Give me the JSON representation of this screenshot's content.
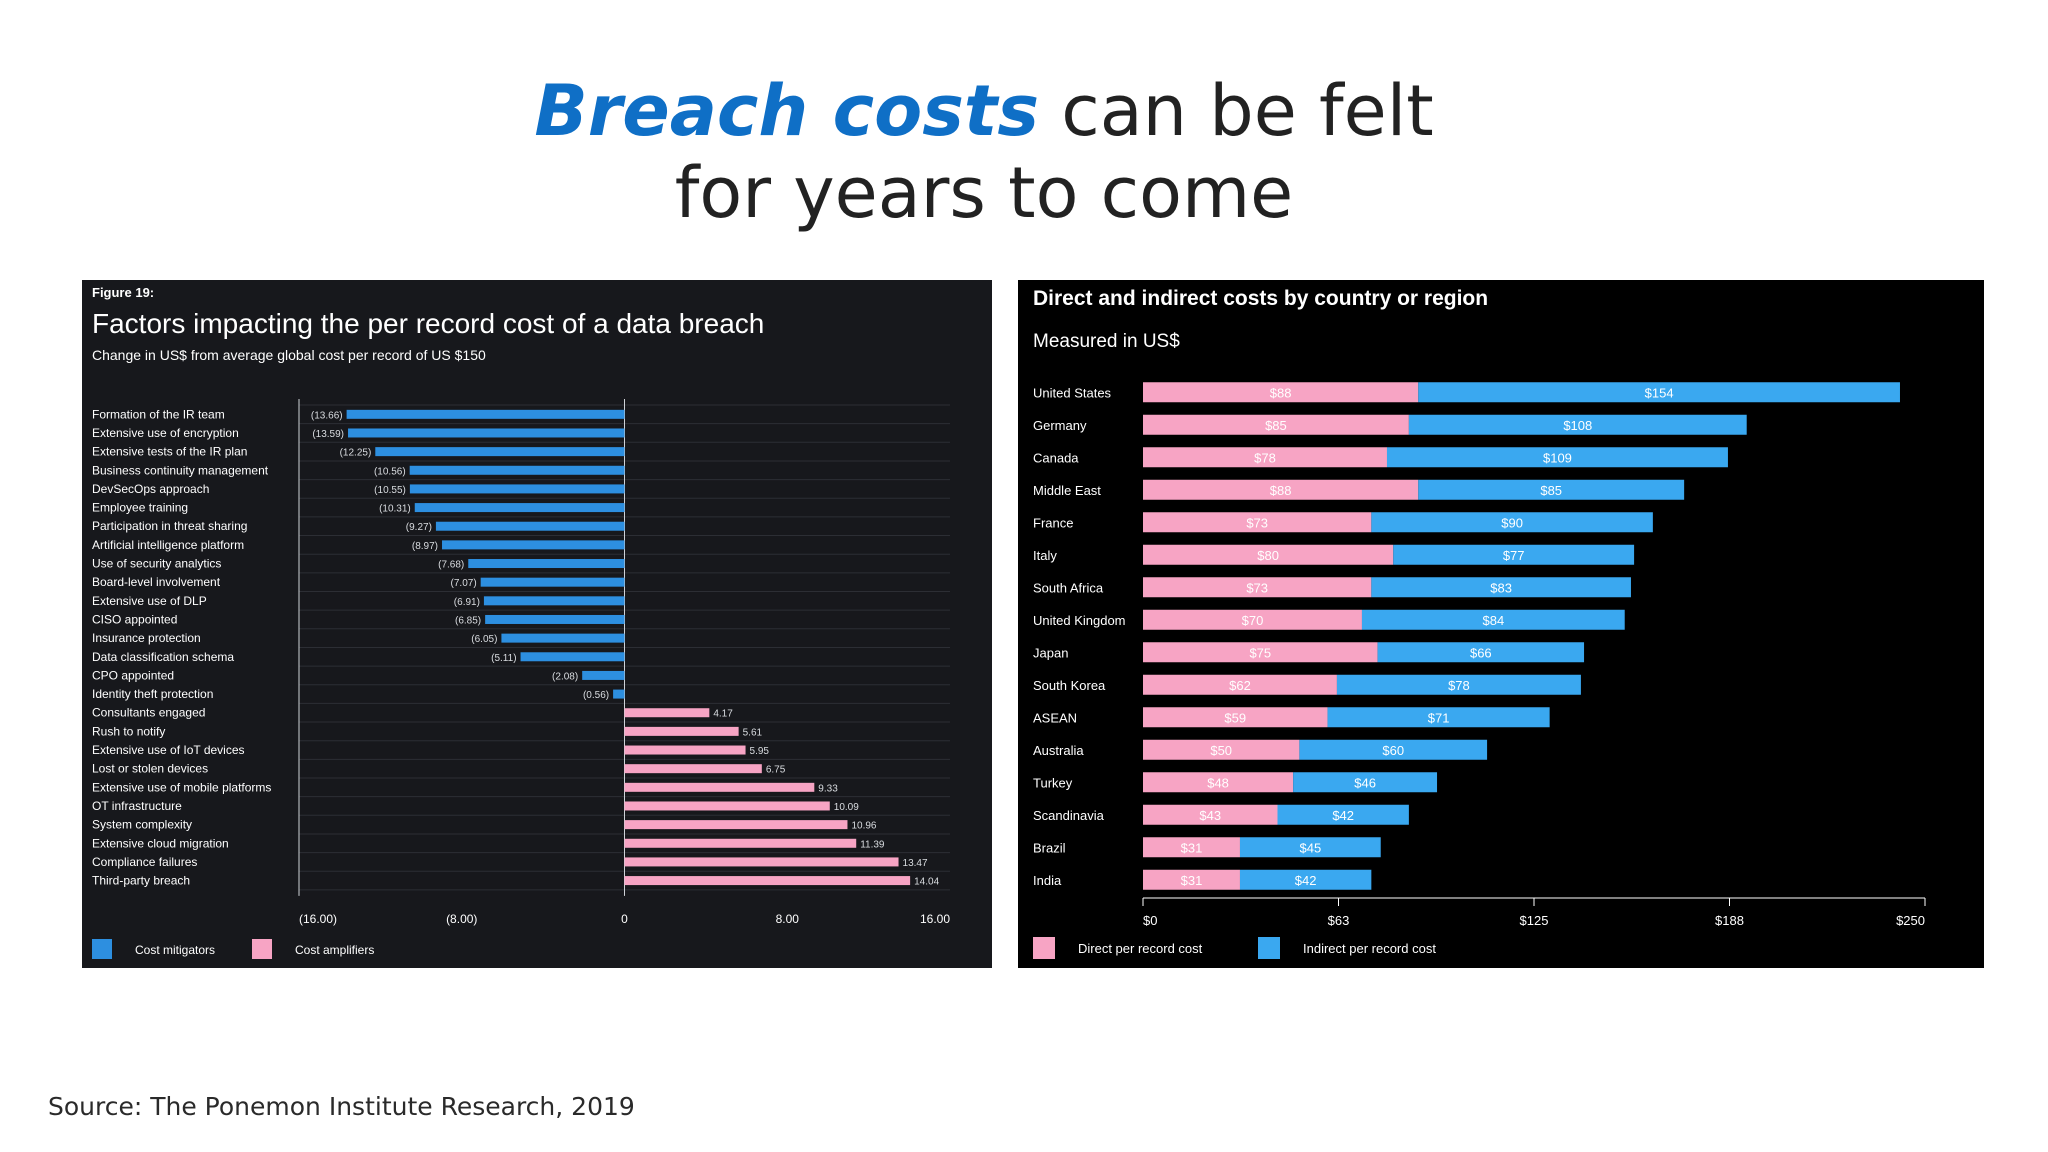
{
  "slide": {
    "title_accent": "Breach costs",
    "title_rest_line1": "can be felt",
    "title_line2": "for years to come",
    "source": "Source: The Ponemon Institute Research, 2019"
  },
  "colors": {
    "accent": "#0f6fc6",
    "mitigator": "#2d8fe0",
    "amplifier": "#f7a4c4",
    "indirect": "#3aa8f0"
  },
  "chart_data": [
    {
      "type": "bar",
      "orientation": "horizontal",
      "figure_label": "Figure 19:",
      "title": "Factors impacting the per record cost of a data breach",
      "subtitle": "Change in US$ from average global cost per record of US $150",
      "xlim": [
        -16,
        16
      ],
      "x_ticks": [
        -16,
        -8,
        0,
        8,
        16
      ],
      "x_tick_labels": [
        "(16.00)",
        "(8.00)",
        "0",
        "8.00",
        "16.00"
      ],
      "categories": [
        "Formation of the IR team",
        "Extensive use of encryption",
        "Extensive tests of the IR plan",
        "Business continuity management",
        "DevSecOps approach",
        "Employee training",
        "Participation in threat sharing",
        "Artificial intelligence platform",
        "Use of security analytics",
        "Board-level involvement",
        "Extensive use of DLP",
        "CISO appointed",
        "Insurance protection",
        "Data classification schema",
        "CPO appointed",
        "Identity theft protection",
        "Consultants engaged",
        "Rush to notify",
        "Extensive use of IoT devices",
        "Lost or stolen devices",
        "Extensive use of mobile platforms",
        "OT infrastructure",
        "System complexity",
        "Extensive cloud migration",
        "Compliance failures",
        "Third-party breach"
      ],
      "values": [
        -13.66,
        -13.59,
        -12.25,
        -10.56,
        -10.55,
        -10.31,
        -9.27,
        -8.97,
        -7.68,
        -7.07,
        -6.91,
        -6.85,
        -6.05,
        -5.11,
        -2.08,
        -0.56,
        4.17,
        5.61,
        5.95,
        6.75,
        9.33,
        10.09,
        10.96,
        11.39,
        13.47,
        14.04
      ],
      "value_labels": [
        "(13.66)",
        "(13.59)",
        "(12.25)",
        "(10.56)",
        "(10.55)",
        "(10.31)",
        "(9.27)",
        "(8.97)",
        "(7.68)",
        "(7.07)",
        "(6.91)",
        "(6.85)",
        "(6.05)",
        "(5.11)",
        "(2.08)",
        "(0.56)",
        "4.17",
        "5.61",
        "5.95",
        "6.75",
        "9.33",
        "10.09",
        "10.96",
        "11.39",
        "13.47",
        "14.04"
      ],
      "legend": [
        {
          "name": "Cost mitigators",
          "color": "#2d8fe0"
        },
        {
          "name": "Cost amplifiers",
          "color": "#f7a4c4"
        }
      ],
      "legend_position": "bottom-left",
      "grid": true
    },
    {
      "type": "bar",
      "orientation": "horizontal",
      "stacked": true,
      "title": "Direct and indirect costs by country or region",
      "subtitle": "Measured in US$",
      "xlim": [
        0,
        250
      ],
      "x_ticks": [
        0,
        62.5,
        125,
        187.5,
        250
      ],
      "x_tick_labels": [
        "$0",
        "$63",
        "$125",
        "$188",
        "$250"
      ],
      "categories": [
        "United States",
        "Germany",
        "Canada",
        "Middle East",
        "France",
        "Italy",
        "South Africa",
        "United Kingdom",
        "Japan",
        "South Korea",
        "ASEAN",
        "Australia",
        "Turkey",
        "Scandinavia",
        "Brazil",
        "India"
      ],
      "series": [
        {
          "name": "Direct per record cost",
          "color": "#f7a4c4",
          "values": [
            88,
            85,
            78,
            88,
            73,
            80,
            73,
            70,
            75,
            62,
            59,
            50,
            48,
            43,
            31,
            31
          ],
          "labels": [
            "$88",
            "$85",
            "$78",
            "$88",
            "$73",
            "$80",
            "$73",
            "$70",
            "$75",
            "$62",
            "$59",
            "$50",
            "$48",
            "$43",
            "$31",
            "$31"
          ]
        },
        {
          "name": "Indirect per record cost",
          "color": "#3aa8f0",
          "values": [
            154,
            108,
            109,
            85,
            90,
            77,
            83,
            84,
            66,
            78,
            71,
            60,
            46,
            42,
            45,
            42
          ],
          "labels": [
            "$154",
            "$108",
            "$109",
            "$85",
            "$90",
            "$77",
            "$83",
            "$84",
            "$66",
            "$78",
            "$71",
            "$60",
            "$46",
            "$42",
            "$45",
            "$42"
          ]
        }
      ],
      "legend_position": "bottom-left",
      "grid": false
    }
  ]
}
